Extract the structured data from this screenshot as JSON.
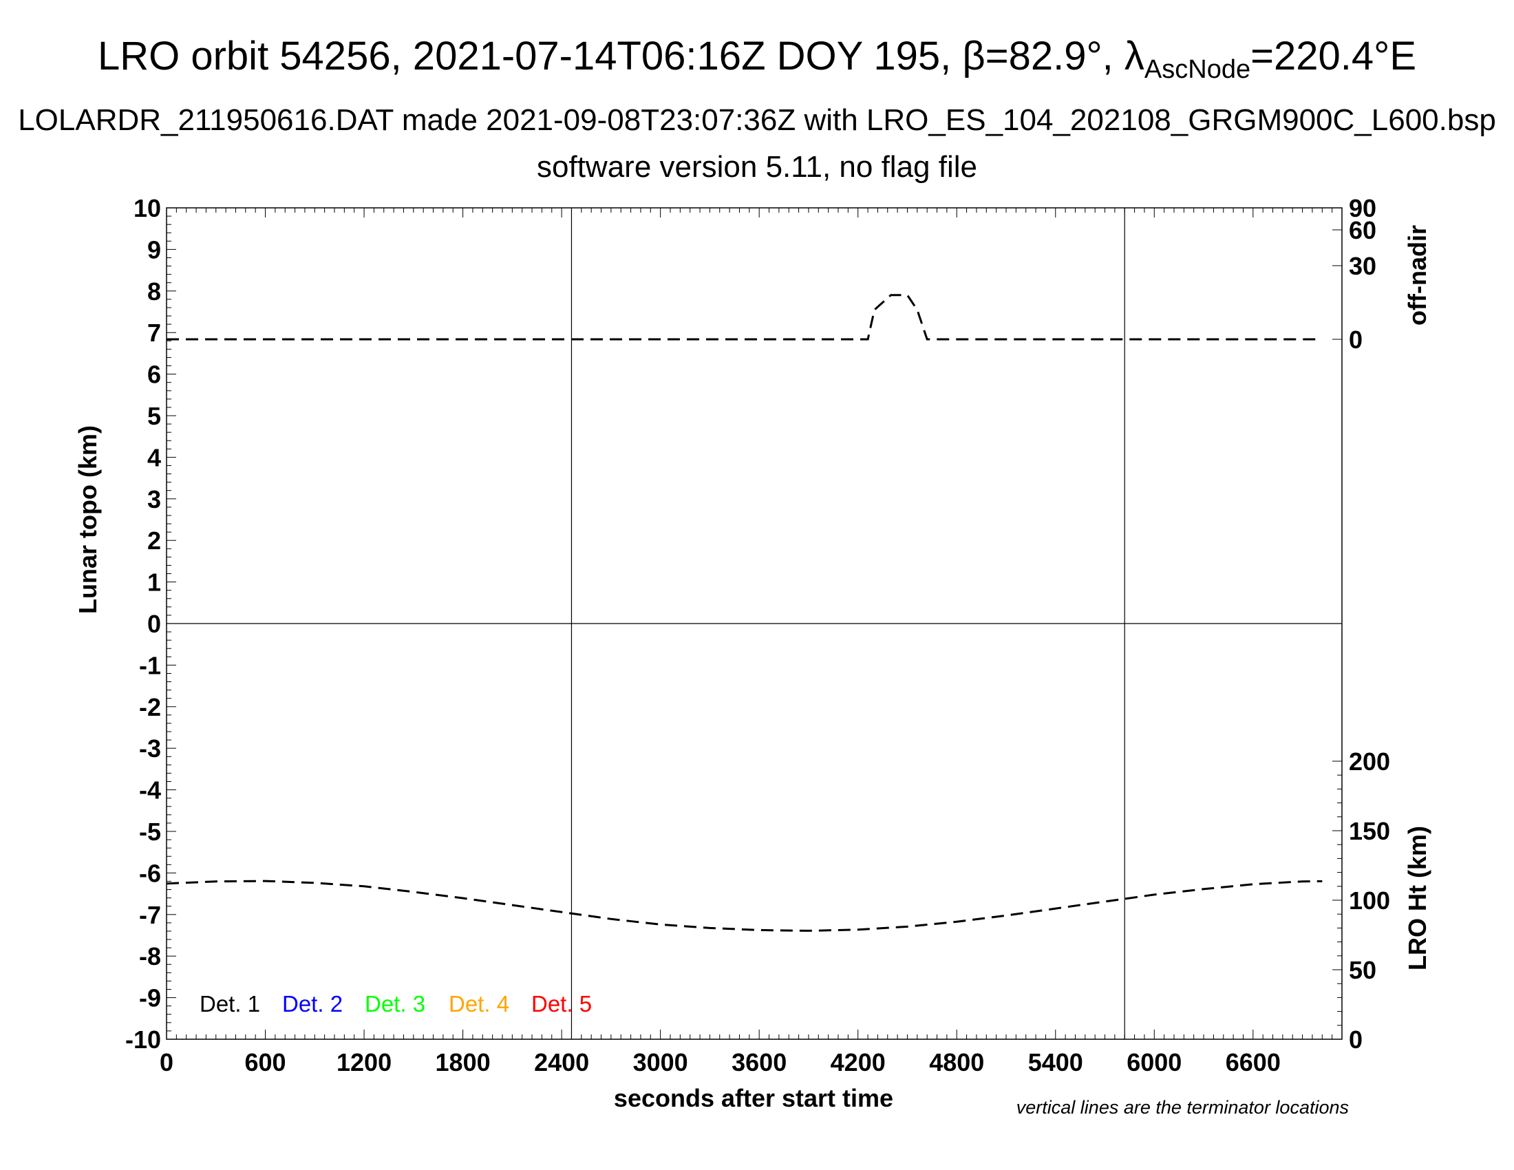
{
  "header": {
    "title_main": "LRO orbit 54256, 2021-07-14T06:16Z DOY 195, β=82.9°, λ",
    "title_sub": "AscNode",
    "title_end": "=220.4°E",
    "subtitle": "LOLARDR_211950616.DAT made 2021-09-08T23:07:36Z with LRO_ES_104_202108_GRGM900C_L600.bsp",
    "subtitle2": "software version 5.11, no flag file"
  },
  "chart_data": {
    "type": "line",
    "xlabel": "seconds after start time",
    "ylabel": "Lunar topo (km)",
    "y2label_top": "off-nadir",
    "y2label_bottom": "LRO Ht (km)",
    "note": "vertical lines are the terminator locations",
    "xlim": [
      0,
      7140
    ],
    "ylim": [
      -10,
      10
    ],
    "x_ticks": [
      "0",
      "600",
      "1200",
      "1800",
      "2400",
      "3000",
      "3600",
      "4200",
      "4800",
      "5400",
      "6000",
      "6600"
    ],
    "y_ticks": [
      "10",
      "9",
      "8",
      "7",
      "6",
      "5",
      "4",
      "3",
      "2",
      "1",
      "0",
      "-1",
      "-2",
      "-3",
      "-4",
      "-5",
      "-6",
      "-7",
      "-8",
      "-9",
      "-10"
    ],
    "offnadir_ticks": [
      "90",
      "60",
      "30",
      "0"
    ],
    "height_ticks": [
      "200",
      "150",
      "100",
      "50",
      "0"
    ],
    "terminators": [
      2460,
      5820
    ],
    "legend": [
      {
        "label": "Det. 1",
        "color": "#000000"
      },
      {
        "label": "Det. 2",
        "color": "#0000ff"
      },
      {
        "label": "Det. 3",
        "color": "#00ff00"
      },
      {
        "label": "Det. 4",
        "color": "#ffa500"
      },
      {
        "label": "Det. 5",
        "color": "#ff0000"
      }
    ],
    "series": [
      {
        "axis": "off-nadir (deg)",
        "x": [
          0,
          4200,
          4260,
          4300,
          4400,
          4500,
          4560,
          4620,
          7000
        ],
        "y": [
          0,
          0,
          0,
          12,
          18,
          18,
          12,
          0,
          0
        ]
      },
      {
        "axis": "LRO Ht (km)",
        "x": [
          0,
          300,
          600,
          900,
          1200,
          1500,
          1800,
          2100,
          2400,
          2700,
          3000,
          3300,
          3600,
          3900,
          4200,
          4500,
          4800,
          5100,
          5400,
          5700,
          6000,
          6300,
          6600,
          6900,
          7020
        ],
        "y": [
          112,
          113.5,
          113.8,
          112.5,
          110,
          106,
          101.5,
          96.5,
          91.5,
          86.5,
          82.5,
          80,
          78.5,
          78,
          78.8,
          81,
          84.5,
          89,
          94,
          99,
          104,
          108,
          111.5,
          113.5,
          113.6
        ]
      }
    ]
  }
}
